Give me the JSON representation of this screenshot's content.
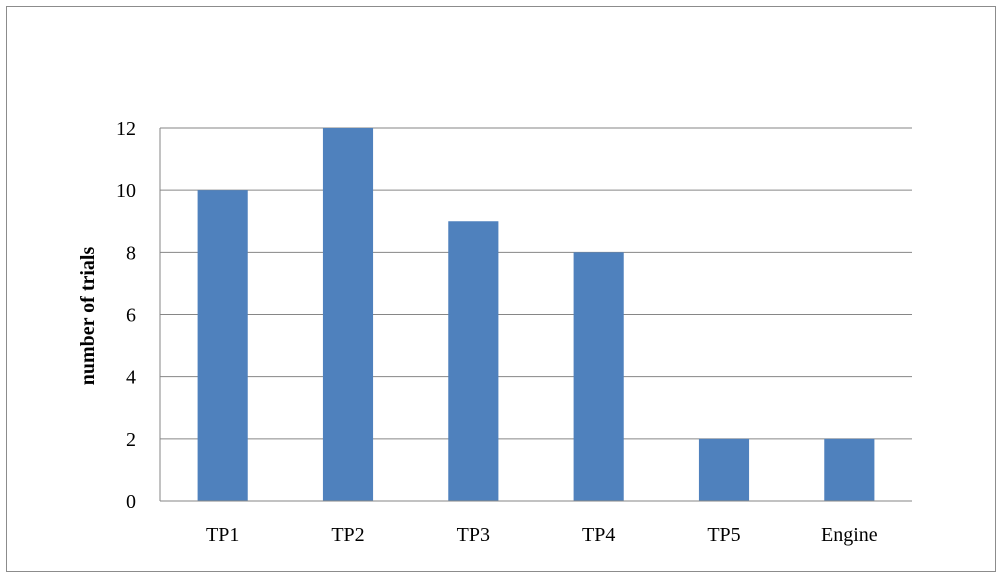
{
  "chart_data": {
    "type": "bar",
    "categories": [
      "TP1",
      "TP2",
      "TP3",
      "TP4",
      "TP5",
      "Engine"
    ],
    "values": [
      10,
      12,
      9,
      8,
      2,
      2
    ],
    "title": "",
    "xlabel": "",
    "ylabel": "number of trials",
    "ylim": [
      0,
      12
    ],
    "yticks": [
      0,
      2,
      4,
      6,
      8,
      10,
      12
    ],
    "ytick_labels": [
      "0",
      "2",
      "4",
      "6",
      "8",
      "10",
      "12"
    ],
    "grid": true,
    "legend": "none",
    "bar_color": "#4F81BD",
    "grid_color": "#868686"
  }
}
